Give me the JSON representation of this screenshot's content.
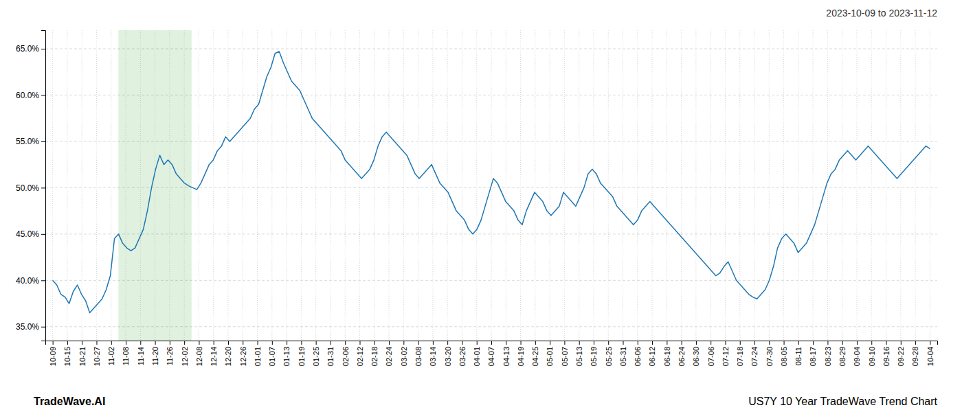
{
  "chart_data": {
    "type": "line",
    "title": "2023-10-09 to 2023-11-12",
    "annotations": [
      "TradeWave.AI",
      "US7Y 10 Year TradeWave Trend Chart"
    ],
    "grid": true,
    "xlim": [
      -1.775,
      214.775
    ],
    "xticks": [
      {
        "value": 0,
        "label": "10-09"
      },
      {
        "value": 3.55,
        "label": "10-15"
      },
      {
        "value": 7.1,
        "label": "10-21"
      },
      {
        "value": 10.65,
        "label": "10-27"
      },
      {
        "value": 14.2,
        "label": "11-02"
      },
      {
        "value": 17.75,
        "label": "11-08"
      },
      {
        "value": 21.3,
        "label": "11-14"
      },
      {
        "value": 24.85,
        "label": "11-20"
      },
      {
        "value": 28.4,
        "label": "11-26"
      },
      {
        "value": 31.95,
        "label": "12-02"
      },
      {
        "value": 35.5,
        "label": "12-08"
      },
      {
        "value": 39.05,
        "label": "12-14"
      },
      {
        "value": 42.6,
        "label": "12-20"
      },
      {
        "value": 46.15,
        "label": "12-26"
      },
      {
        "value": 49.7,
        "label": "01-01"
      },
      {
        "value": 53.25,
        "label": "01-07"
      },
      {
        "value": 56.8,
        "label": "01-13"
      },
      {
        "value": 60.35,
        "label": "01-19"
      },
      {
        "value": 63.9,
        "label": "01-25"
      },
      {
        "value": 67.45,
        "label": "01-31"
      },
      {
        "value": 71,
        "label": "02-06"
      },
      {
        "value": 74.55,
        "label": "02-12"
      },
      {
        "value": 78.1,
        "label": "02-18"
      },
      {
        "value": 81.65,
        "label": "02-24"
      },
      {
        "value": 85.2,
        "label": "03-02"
      },
      {
        "value": 88.75,
        "label": "03-08"
      },
      {
        "value": 92.3,
        "label": "03-14"
      },
      {
        "value": 95.85,
        "label": "03-20"
      },
      {
        "value": 99.4,
        "label": "03-26"
      },
      {
        "value": 102.95,
        "label": "04-01"
      },
      {
        "value": 106.5,
        "label": "04-07"
      },
      {
        "value": 110.05,
        "label": "04-13"
      },
      {
        "value": 113.6,
        "label": "04-19"
      },
      {
        "value": 117.15,
        "label": "04-25"
      },
      {
        "value": 120.7,
        "label": "05-01"
      },
      {
        "value": 124.25,
        "label": "05-07"
      },
      {
        "value": 127.8,
        "label": "05-13"
      },
      {
        "value": 131.35,
        "label": "05-19"
      },
      {
        "value": 134.9,
        "label": "05-25"
      },
      {
        "value": 138.45,
        "label": "05-31"
      },
      {
        "value": 142,
        "label": "06-06"
      },
      {
        "value": 145.55,
        "label": "06-12"
      },
      {
        "value": 149.1,
        "label": "06-18"
      },
      {
        "value": 152.65,
        "label": "06-24"
      },
      {
        "value": 156.2,
        "label": "06-30"
      },
      {
        "value": 159.75,
        "label": "07-06"
      },
      {
        "value": 163.3,
        "label": "07-12"
      },
      {
        "value": 166.85,
        "label": "07-18"
      },
      {
        "value": 170.4,
        "label": "07-24"
      },
      {
        "value": 173.95,
        "label": "07-30"
      },
      {
        "value": 177.5,
        "label": "08-05"
      },
      {
        "value": 181.05,
        "label": "08-11"
      },
      {
        "value": 184.6,
        "label": "08-17"
      },
      {
        "value": 188.15,
        "label": "08-23"
      },
      {
        "value": 191.7,
        "label": "08-29"
      },
      {
        "value": 195.25,
        "label": "09-04"
      },
      {
        "value": 198.8,
        "label": "09-10"
      },
      {
        "value": 202.35,
        "label": "09-16"
      },
      {
        "value": 205.9,
        "label": "09-22"
      },
      {
        "value": 209.45,
        "label": "09-28"
      },
      {
        "value": 213,
        "label": "10-04"
      }
    ],
    "ylim": [
      33.5,
      67.0
    ],
    "yticks": [
      {
        "value": 35.0,
        "label": "35.0%"
      },
      {
        "value": 40.0,
        "label": "40.0%"
      },
      {
        "value": 45.0,
        "label": "45.0%"
      },
      {
        "value": 50.0,
        "label": "50.0%"
      },
      {
        "value": 55.0,
        "label": "55.0%"
      },
      {
        "value": 60.0,
        "label": "60.0%"
      },
      {
        "value": 65.0,
        "label": "65.0%"
      }
    ],
    "shaded_region": {
      "from": 15.975,
      "to": 33.725
    },
    "x": [
      0,
      1,
      2,
      3,
      4,
      5,
      6,
      7,
      8,
      9,
      10,
      11,
      12,
      13,
      14,
      15,
      16,
      17,
      18,
      19,
      20,
      21,
      22,
      23,
      24,
      25,
      26,
      27,
      28,
      29,
      30,
      31,
      32,
      33,
      34,
      35,
      36,
      37,
      38,
      39,
      40,
      41,
      42,
      43,
      44,
      45,
      46,
      47,
      48,
      49,
      50,
      51,
      52,
      53,
      54,
      55,
      56,
      57,
      58,
      59,
      60,
      61,
      62,
      63,
      64,
      65,
      66,
      67,
      68,
      69,
      70,
      71,
      72,
      73,
      74,
      75,
      76,
      77,
      78,
      79,
      80,
      81,
      82,
      83,
      84,
      85,
      86,
      87,
      88,
      89,
      90,
      91,
      92,
      93,
      94,
      95,
      96,
      97,
      98,
      99,
      100,
      101,
      102,
      103,
      104,
      105,
      106,
      107,
      108,
      109,
      110,
      111,
      112,
      113,
      114,
      115,
      116,
      117,
      118,
      119,
      120,
      121,
      122,
      123,
      124,
      125,
      126,
      127,
      128,
      129,
      130,
      131,
      132,
      133,
      134,
      135,
      136,
      137,
      138,
      139,
      140,
      141,
      142,
      143,
      144,
      145,
      146,
      147,
      148,
      149,
      150,
      151,
      152,
      153,
      154,
      155,
      156,
      157,
      158,
      159,
      160,
      161,
      162,
      163,
      164,
      165,
      166,
      167,
      168,
      169,
      170,
      171,
      172,
      173,
      174,
      175,
      176,
      177,
      178,
      179,
      180,
      181,
      182,
      183,
      184,
      185,
      186,
      187,
      188,
      189,
      190,
      191,
      192,
      193,
      194,
      195,
      196,
      197,
      198,
      199,
      200,
      201,
      202,
      203,
      204,
      205,
      206,
      207,
      208,
      209,
      210,
      211,
      212,
      213
    ],
    "values": [
      40.0,
      39.5,
      38.5,
      38.2,
      37.5,
      38.8,
      39.5,
      38.5,
      37.8,
      36.5,
      37.0,
      37.5,
      38.0,
      39.0,
      40.5,
      44.5,
      45.0,
      44.0,
      43.5,
      43.2,
      43.5,
      44.5,
      45.5,
      47.5,
      50.0,
      52.0,
      53.5,
      52.5,
      53.0,
      52.5,
      51.5,
      51.0,
      50.5,
      50.2,
      50.0,
      49.8,
      50.5,
      51.5,
      52.5,
      53.0,
      54.0,
      54.5,
      55.5,
      55.0,
      55.5,
      56.0,
      56.5,
      57.0,
      57.5,
      58.5,
      59.0,
      60.5,
      62.0,
      63.0,
      64.5,
      64.7,
      63.5,
      62.5,
      61.5,
      61.0,
      60.5,
      59.5,
      58.5,
      57.5,
      57.0,
      56.5,
      56.0,
      55.5,
      55.0,
      54.5,
      54.0,
      53.0,
      52.5,
      52.0,
      51.5,
      51.0,
      51.5,
      52.0,
      53.0,
      54.5,
      55.5,
      56.0,
      55.5,
      55.0,
      54.5,
      54.0,
      53.5,
      52.5,
      51.5,
      51.0,
      51.5,
      52.0,
      52.5,
      51.5,
      50.5,
      50.0,
      49.5,
      48.5,
      47.5,
      47.0,
      46.5,
      45.5,
      45.0,
      45.5,
      46.5,
      48.0,
      49.5,
      51.0,
      50.5,
      49.5,
      48.5,
      48.0,
      47.5,
      46.5,
      46.0,
      47.5,
      48.5,
      49.5,
      49.0,
      48.5,
      47.5,
      47.0,
      47.5,
      48.0,
      49.5,
      49.0,
      48.5,
      48.0,
      49.0,
      50.0,
      51.5,
      52.0,
      51.5,
      50.5,
      50.0,
      49.5,
      49.0,
      48.0,
      47.5,
      47.0,
      46.5,
      46.0,
      46.5,
      47.5,
      48.0,
      48.5,
      48.0,
      47.5,
      47.0,
      46.5,
      46.0,
      45.5,
      45.0,
      44.5,
      44.0,
      43.5,
      43.0,
      42.5,
      42.0,
      41.5,
      41.0,
      40.5,
      40.8,
      41.5,
      42.0,
      41.0,
      40.0,
      39.5,
      39.0,
      38.5,
      38.2,
      38.0,
      38.5,
      39.0,
      40.0,
      41.5,
      43.5,
      44.5,
      45.0,
      44.5,
      44.0,
      43.0,
      43.5,
      44.0,
      45.0,
      46.0,
      47.5,
      49.0,
      50.5,
      51.5,
      52.0,
      53.0,
      53.5,
      54.0,
      53.5,
      53.0,
      53.5,
      54.0,
      54.5,
      54.0,
      53.5,
      53.0,
      52.5,
      52.0,
      51.5,
      51.0,
      51.5,
      52.0,
      52.5,
      53.0,
      53.5,
      54.0,
      54.5,
      54.2
    ]
  }
}
